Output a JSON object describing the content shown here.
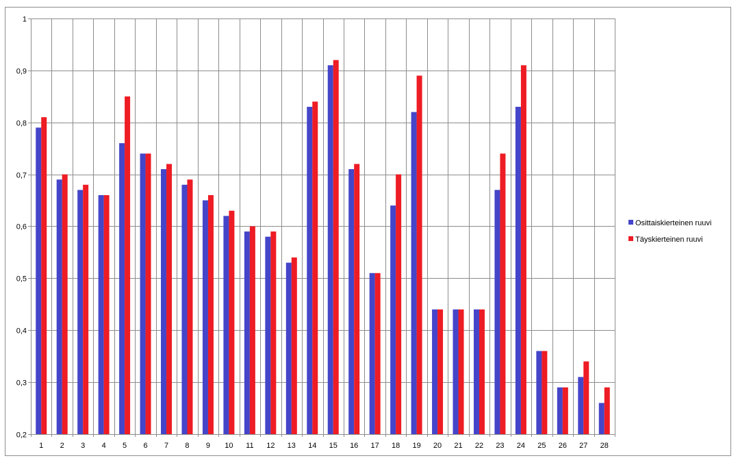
{
  "chart_data": {
    "type": "bar",
    "title": "",
    "xlabel": "",
    "ylabel": "",
    "ylim": [
      0.2,
      1.0
    ],
    "ytick_step": 0.1,
    "grid": "on",
    "legend_position": "right",
    "categories": [
      "1",
      "2",
      "3",
      "4",
      "5",
      "6",
      "7",
      "8",
      "9",
      "10",
      "11",
      "12",
      "13",
      "14",
      "15",
      "16",
      "17",
      "18",
      "19",
      "20",
      "21",
      "22",
      "23",
      "24",
      "25",
      "26",
      "27",
      "28"
    ],
    "y_tick_labels": [
      "0,2",
      "0,3",
      "0,4",
      "0,5",
      "0,6",
      "0,7",
      "0,8",
      "0,9",
      "1"
    ],
    "series": [
      {
        "name": "Osittaiskierteinen ruuvi",
        "color": "#4545c9",
        "values": [
          0.79,
          0.69,
          0.67,
          0.66,
          0.76,
          0.74,
          0.71,
          0.68,
          0.65,
          0.62,
          0.59,
          0.58,
          0.53,
          0.83,
          0.91,
          0.71,
          0.51,
          0.64,
          0.82,
          0.44,
          0.44,
          0.44,
          0.67,
          0.83,
          0.36,
          0.29,
          0.31,
          0.26
        ]
      },
      {
        "name": "Täyskierteinen ruuvi",
        "color": "#ee1c24",
        "values": [
          0.81,
          0.7,
          0.68,
          0.66,
          0.85,
          0.74,
          0.72,
          0.69,
          0.66,
          0.63,
          0.6,
          0.59,
          0.54,
          0.84,
          0.92,
          0.72,
          0.51,
          0.7,
          0.89,
          0.44,
          0.44,
          0.44,
          0.74,
          0.91,
          0.36,
          0.29,
          0.34,
          0.29
        ]
      }
    ]
  }
}
